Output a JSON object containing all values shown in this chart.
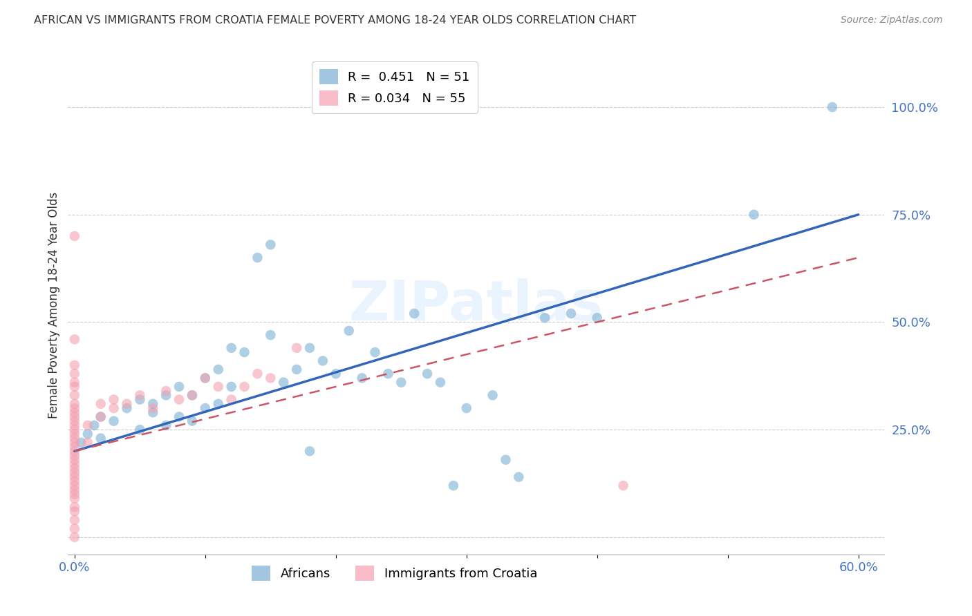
{
  "title": "AFRICAN VS IMMIGRANTS FROM CROATIA FEMALE POVERTY AMONG 18-24 YEAR OLDS CORRELATION CHART",
  "source": "Source: ZipAtlas.com",
  "label_color": "#4472c4",
  "ylabel": "Female Poverty Among 18-24 Year Olds",
  "xlim": [
    -0.005,
    0.62
  ],
  "ylim": [
    -0.04,
    1.12
  ],
  "x_ticks": [
    0.0,
    0.1,
    0.2,
    0.3,
    0.4,
    0.5,
    0.6
  ],
  "x_tick_labels": [
    "0.0%",
    "",
    "",
    "",
    "",
    "",
    "60.0%"
  ],
  "y_ticks": [
    0.0,
    0.25,
    0.5,
    0.75,
    1.0
  ],
  "y_tick_labels": [
    "",
    "25.0%",
    "50.0%",
    "75.0%",
    "100.0%"
  ],
  "africans_R": 0.451,
  "africans_N": 51,
  "croatia_R": 0.034,
  "croatia_N": 55,
  "africans_color": "#7bafd4",
  "croatia_color": "#f4a0b0",
  "africans_line_color": "#3366bb",
  "croatia_line_color": "#cc5566",
  "watermark": "ZIPatlas",
  "africans_x": [
    0.005,
    0.01,
    0.015,
    0.02,
    0.02,
    0.03,
    0.04,
    0.05,
    0.05,
    0.06,
    0.06,
    0.07,
    0.07,
    0.08,
    0.08,
    0.09,
    0.09,
    0.1,
    0.1,
    0.11,
    0.11,
    0.12,
    0.12,
    0.13,
    0.14,
    0.15,
    0.15,
    0.16,
    0.17,
    0.18,
    0.18,
    0.19,
    0.2,
    0.21,
    0.22,
    0.23,
    0.24,
    0.25,
    0.26,
    0.27,
    0.28,
    0.29,
    0.3,
    0.32,
    0.33,
    0.34,
    0.36,
    0.38,
    0.4,
    0.52,
    0.58
  ],
  "africans_y": [
    0.22,
    0.24,
    0.26,
    0.28,
    0.23,
    0.27,
    0.3,
    0.25,
    0.32,
    0.29,
    0.31,
    0.26,
    0.33,
    0.35,
    0.28,
    0.33,
    0.27,
    0.37,
    0.3,
    0.39,
    0.31,
    0.44,
    0.35,
    0.43,
    0.65,
    0.68,
    0.47,
    0.36,
    0.39,
    0.2,
    0.44,
    0.41,
    0.38,
    0.48,
    0.37,
    0.43,
    0.38,
    0.36,
    0.52,
    0.38,
    0.36,
    0.12,
    0.3,
    0.33,
    0.18,
    0.14,
    0.51,
    0.52,
    0.51,
    0.75,
    1.0
  ],
  "croatia_x": [
    0.0,
    0.0,
    0.0,
    0.0,
    0.0,
    0.0,
    0.0,
    0.0,
    0.0,
    0.0,
    0.0,
    0.0,
    0.0,
    0.0,
    0.0,
    0.0,
    0.0,
    0.0,
    0.0,
    0.0,
    0.0,
    0.0,
    0.0,
    0.0,
    0.0,
    0.0,
    0.0,
    0.0,
    0.0,
    0.0,
    0.0,
    0.0,
    0.0,
    0.0,
    0.0,
    0.01,
    0.01,
    0.02,
    0.02,
    0.03,
    0.03,
    0.04,
    0.05,
    0.06,
    0.07,
    0.08,
    0.09,
    0.1,
    0.11,
    0.12,
    0.13,
    0.14,
    0.15,
    0.17,
    0.42
  ],
  "croatia_y": [
    0.0,
    0.02,
    0.04,
    0.06,
    0.07,
    0.09,
    0.1,
    0.11,
    0.12,
    0.13,
    0.14,
    0.15,
    0.16,
    0.17,
    0.18,
    0.19,
    0.2,
    0.21,
    0.22,
    0.23,
    0.24,
    0.25,
    0.26,
    0.27,
    0.28,
    0.29,
    0.3,
    0.31,
    0.33,
    0.35,
    0.36,
    0.38,
    0.4,
    0.46,
    0.7,
    0.22,
    0.26,
    0.28,
    0.31,
    0.3,
    0.32,
    0.31,
    0.33,
    0.3,
    0.34,
    0.32,
    0.33,
    0.37,
    0.35,
    0.32,
    0.35,
    0.38,
    0.37,
    0.44,
    0.12
  ],
  "africans_line_x0": 0.0,
  "africans_line_y0": 0.2,
  "africans_line_x1": 0.6,
  "africans_line_y1": 0.75,
  "croatia_line_x0": 0.0,
  "croatia_line_y0": 0.2,
  "croatia_line_x1": 0.6,
  "croatia_line_y1": 0.65
}
